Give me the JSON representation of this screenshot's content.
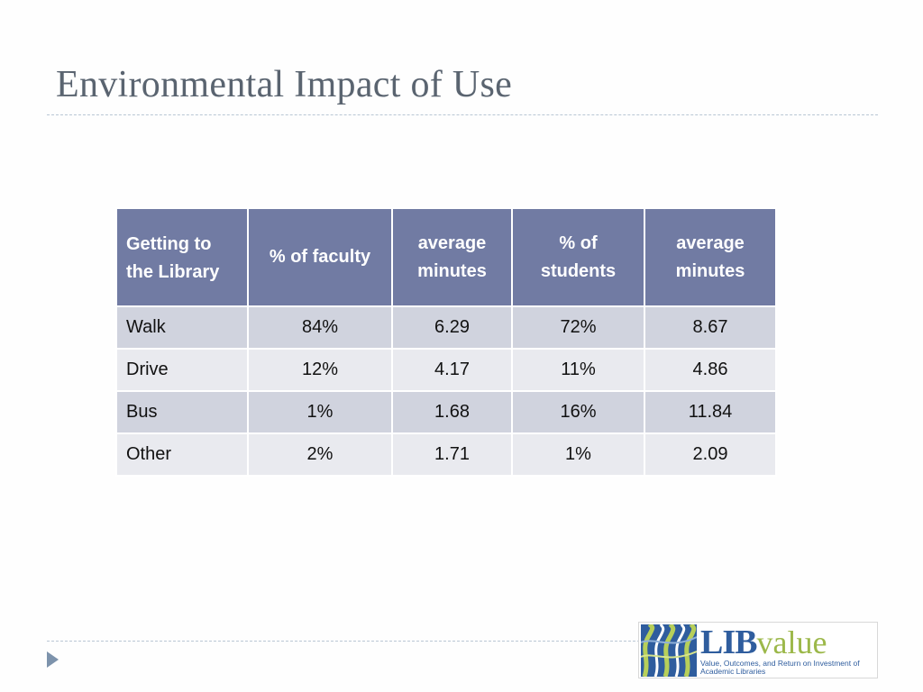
{
  "slide": {
    "title": "Environmental Impact of Use"
  },
  "table": {
    "headers": [
      "Getting to the Library",
      "% of faculty",
      "average minutes",
      "% of students",
      "average minutes"
    ],
    "rows": [
      [
        "Walk",
        "84%",
        "6.29",
        "72%",
        "8.67"
      ],
      [
        "Drive",
        "12%",
        "4.17",
        "11%",
        "4.86"
      ],
      [
        "Bus",
        "1%",
        "1.68",
        "16%",
        "11.84"
      ],
      [
        "Other",
        "2%",
        "1.71",
        "1%",
        "2.09"
      ]
    ]
  },
  "logo": {
    "wordmark_lib": "LIB",
    "wordmark_value": "value",
    "tagline": "Value, Outcomes, and Return on Investment of Academic Libraries",
    "colors": {
      "lib": "#2f5d9e",
      "value": "#9cb84a"
    }
  },
  "nav": {
    "icon": "triangle-right-icon"
  },
  "colors": {
    "header_bg": "#717ba3",
    "row_odd": "#d0d3de",
    "row_even": "#e9eaef",
    "title": "#5a6470"
  }
}
